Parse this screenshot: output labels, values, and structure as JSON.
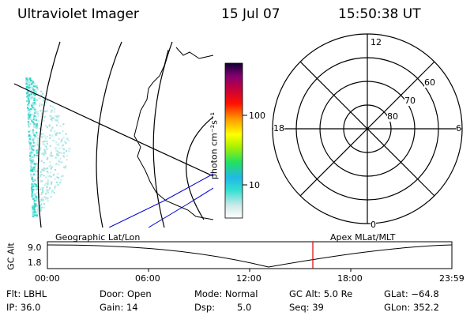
{
  "header": {
    "title": "Ultraviolet Imager",
    "date": "15 Jul 07",
    "time": "15:50:38 UT"
  },
  "colorbar": {
    "unit_label": "photon cm⁻²s⁻¹",
    "ticks": [
      "100",
      "10"
    ]
  },
  "polar_plot": {
    "mlt_labels": {
      "top": "12",
      "left": "18",
      "right": "6",
      "bottom": "0"
    },
    "lat_labels": [
      "60",
      "70",
      "80"
    ]
  },
  "orbit": {
    "ylabel": "GC Alt",
    "y_ticks": [
      "9.0",
      "1.8"
    ],
    "left_title": "Geographic Lat/Lon",
    "right_title": "Apex MLat/MLT",
    "x_ticks": [
      "00:00",
      "06:00",
      "12:00",
      "18:00",
      "23:59"
    ]
  },
  "info": {
    "row1": [
      "Flt: LBHL",
      "Door: Open",
      "Mode: Normal",
      "GC Alt: 5.0 Re",
      "GLat: −64.8"
    ],
    "row2": [
      "IP: 36.0",
      "Gain: 14",
      "Dsp:",
      "5.0",
      "Seq: 39",
      "GLon: 352.2"
    ]
  },
  "colors": {
    "marker": "#e00000",
    "tracks": "#0000cc",
    "emission": "#7fd8d8"
  }
}
